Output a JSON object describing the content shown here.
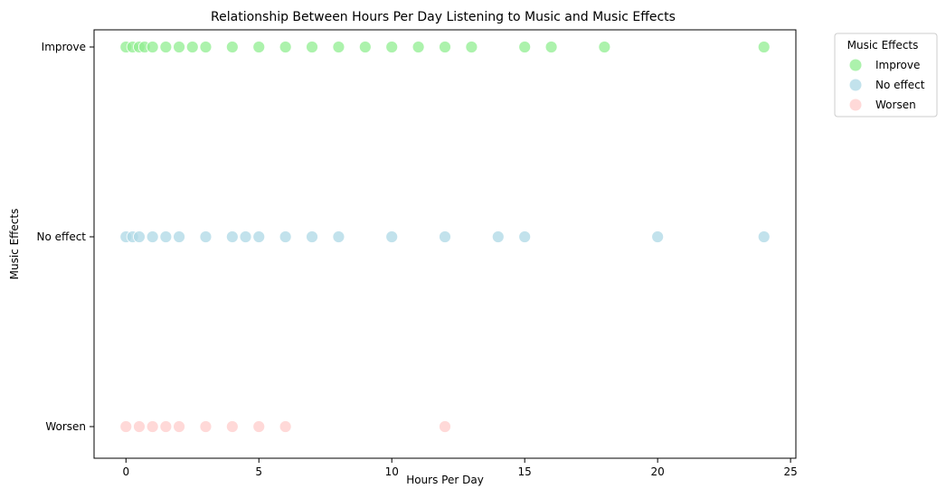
{
  "chart_data": {
    "type": "scatter",
    "title": "Relationship Between Hours Per Day Listening to Music and Music Effects",
    "xlabel": "Hours Per Day",
    "ylabel": "Music Effects",
    "xlim": [
      -1.2,
      25.2
    ],
    "xticks": [
      0,
      5,
      10,
      15,
      20,
      25
    ],
    "categories": [
      "Improve",
      "No effect",
      "Worsen"
    ],
    "grid": false,
    "legend": {
      "title": "Music Effects",
      "placement": "outside-top-right",
      "entries": [
        "Improve",
        "No effect",
        "Worsen"
      ]
    },
    "series": [
      {
        "name": "Improve",
        "color": "#90ee90",
        "category": "Improve",
        "x": [
          0,
          0.25,
          0.5,
          0.7,
          1,
          1.5,
          2,
          2.5,
          3,
          4,
          5,
          6,
          7,
          8,
          9,
          10,
          11,
          12,
          13,
          15,
          16,
          18,
          24
        ]
      },
      {
        "name": "No effect",
        "color": "#add8e6",
        "category": "No effect",
        "x": [
          0,
          0.25,
          0.5,
          1,
          1.5,
          2,
          3,
          4,
          4.5,
          5,
          6,
          7,
          8,
          10,
          12,
          14,
          15,
          20,
          24
        ]
      },
      {
        "name": "Worsen",
        "color": "#ffcccb",
        "category": "Worsen",
        "x": [
          0,
          0.5,
          1,
          1.5,
          2,
          3,
          4,
          5,
          6,
          12
        ]
      }
    ]
  }
}
